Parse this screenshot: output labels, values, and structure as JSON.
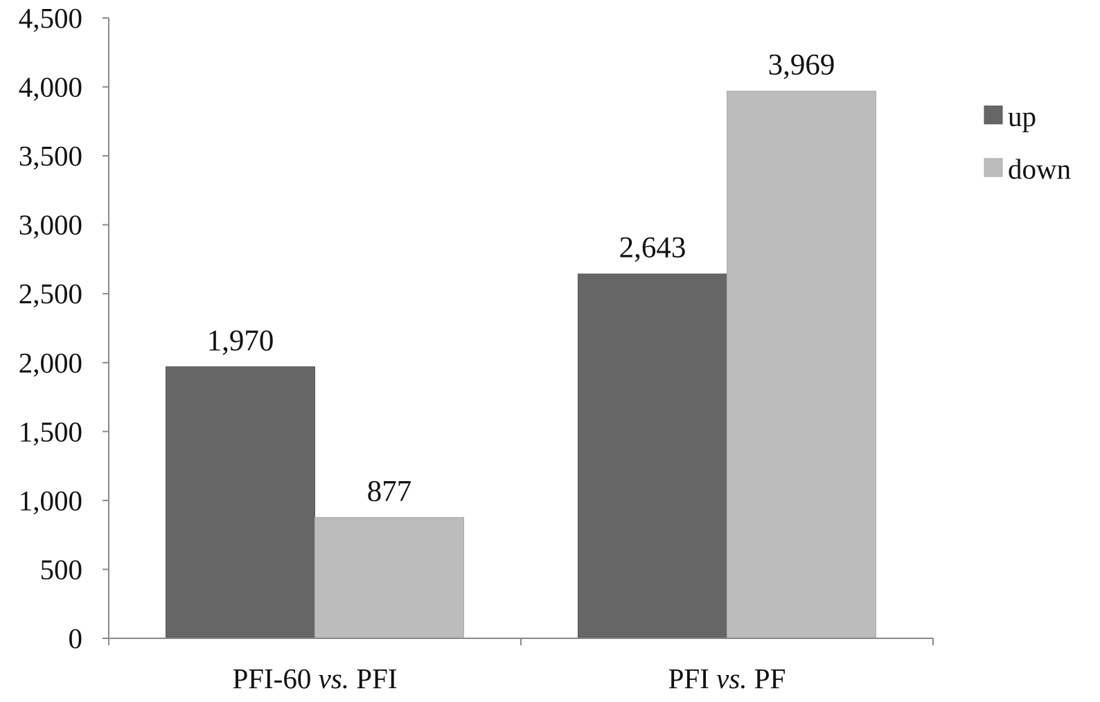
{
  "chart_data": {
    "type": "bar",
    "categories": [
      {
        "pre": "PFI-60 ",
        "italic": "vs.",
        "post": " PFI"
      },
      {
        "pre": "PFI ",
        "italic": "vs.",
        "post": " PF"
      }
    ],
    "series": [
      {
        "name": "up",
        "color": "#666666",
        "values": [
          1970,
          2643
        ]
      },
      {
        "name": "down",
        "color": "#bcbcbc",
        "values": [
          877,
          3969
        ]
      }
    ],
    "data_labels": [
      [
        "1,970",
        "2,643"
      ],
      [
        "877",
        "3,969"
      ]
    ],
    "y_ticks": [
      {
        "value": 0,
        "label": "0"
      },
      {
        "value": 500,
        "label": "500"
      },
      {
        "value": 1000,
        "label": "1,000"
      },
      {
        "value": 1500,
        "label": "1,500"
      },
      {
        "value": 2000,
        "label": "2,000"
      },
      {
        "value": 2500,
        "label": "2,500"
      },
      {
        "value": 3000,
        "label": "3,000"
      },
      {
        "value": 3500,
        "label": "3,500"
      },
      {
        "value": 4000,
        "label": "4,000"
      },
      {
        "value": 4500,
        "label": "4,500"
      }
    ],
    "ylim": [
      0,
      4500
    ],
    "title": "",
    "xlabel": "",
    "ylabel": "",
    "grid": false,
    "legend": "right"
  }
}
